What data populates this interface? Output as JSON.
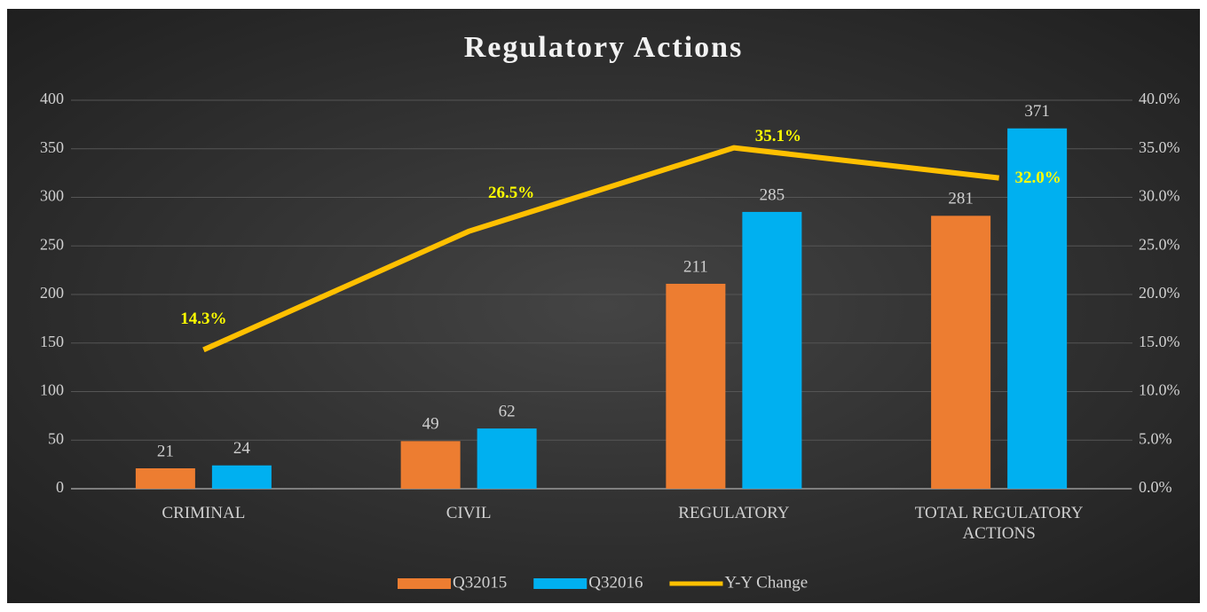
{
  "chart_data": {
    "type": "bar",
    "title": "Regulatory Actions",
    "categories": [
      "CRIMINAL",
      "CIVIL",
      "REGULATORY",
      "TOTAL REGULATORY ACTIONS"
    ],
    "series": [
      {
        "name": "Q32015",
        "type": "bar",
        "color": "#ed7d31",
        "values": [
          21,
          49,
          211,
          281
        ]
      },
      {
        "name": "Q32016",
        "type": "bar",
        "color": "#00b0f0",
        "values": [
          24,
          62,
          285,
          371
        ]
      },
      {
        "name": "Y-Y Change",
        "type": "line",
        "axis": "y2",
        "color": "#ffc000",
        "values": [
          14.3,
          26.5,
          35.1,
          32.0
        ],
        "value_labels": [
          "14.3%",
          "26.5%",
          "35.1%",
          "32.0%"
        ]
      }
    ],
    "ylim": [
      0,
      400
    ],
    "yticks": [
      0,
      50,
      100,
      150,
      200,
      250,
      300,
      350,
      400
    ],
    "y2lim": [
      0,
      40
    ],
    "y2ticks": [
      {
        "value": 0,
        "label": "0.0%"
      },
      {
        "value": 5,
        "label": "5.0%"
      },
      {
        "value": 10,
        "label": "10.0%"
      },
      {
        "value": 15,
        "label": "15.0%"
      },
      {
        "value": 20,
        "label": "20.0%"
      },
      {
        "value": 25,
        "label": "25.0%"
      },
      {
        "value": 30,
        "label": "30.0%"
      },
      {
        "value": 35,
        "label": "35.0%"
      },
      {
        "value": 40,
        "label": "40.0%"
      }
    ],
    "grid": true,
    "legend": "bottom"
  }
}
